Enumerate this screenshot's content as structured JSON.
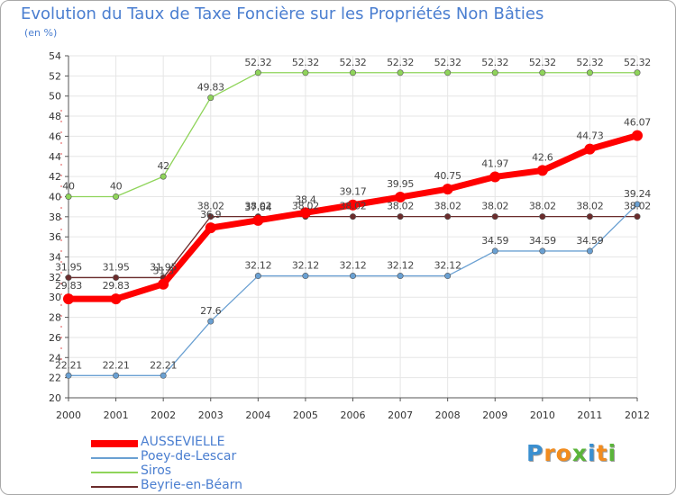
{
  "chart_data": {
    "type": "line",
    "title": "Evolution du Taux de Taxe Foncière sur les Propriétés Non Bâties",
    "unit_label": "(en %)",
    "x": [
      "2000",
      "2001",
      "2002",
      "2003",
      "2004",
      "2005",
      "2006",
      "2007",
      "2008",
      "2009",
      "2010",
      "2011",
      "2012"
    ],
    "ylim": [
      20,
      54
    ],
    "yticks": [
      20,
      22,
      24,
      26,
      28,
      30,
      32,
      34,
      36,
      38,
      40,
      42,
      44,
      46,
      48,
      50,
      52,
      54
    ],
    "series": [
      {
        "name": "Beyrie-en-Béarn",
        "color": "#6b2c2c",
        "values": [
          31.95,
          31.95,
          31.95,
          38.02,
          38.02,
          38.02,
          38.02,
          38.02,
          38.02,
          38.02,
          38.02,
          38.02,
          38.02
        ]
      },
      {
        "name": "Siros",
        "color": "#8fd45a",
        "values": [
          40,
          40,
          42,
          49.83,
          52.32,
          52.32,
          52.32,
          52.32,
          52.32,
          52.32,
          52.32,
          52.32,
          52.32
        ]
      },
      {
        "name": "Poey-de-Lescar",
        "color": "#6aa0d2",
        "values": [
          22.21,
          22.21,
          22.21,
          27.6,
          32.12,
          32.12,
          32.12,
          32.12,
          32.12,
          34.59,
          34.59,
          34.59,
          39.24
        ]
      },
      {
        "name": "AUSSEVIELLE",
        "color": "#ff0000",
        "values": [
          29.83,
          29.83,
          31.3,
          36.9,
          37.64,
          38.4,
          39.17,
          39.95,
          40.75,
          41.97,
          42.6,
          44.73,
          46.07
        ]
      }
    ],
    "legend_order": [
      "AUSSEVIELLE",
      "Poey-de-Lescar",
      "Siros",
      "Beyrie-en-Béarn"
    ]
  },
  "branding": {
    "letters": [
      "P",
      "r",
      "o",
      "x",
      "i",
      "t",
      "i"
    ],
    "colors": [
      "#3a8fd0",
      "#f28c1e",
      "#f28c1e",
      "#5ab43a",
      "#3a8fd0",
      "#f28c1e",
      "#5ab43a"
    ]
  }
}
